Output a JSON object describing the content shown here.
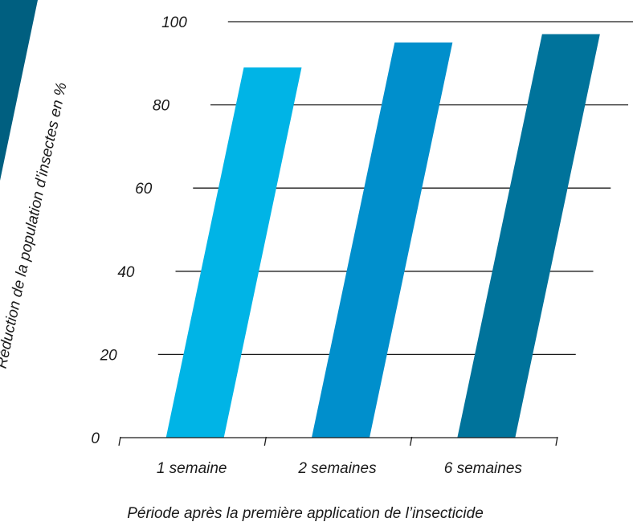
{
  "chart_data": {
    "type": "bar",
    "title": "",
    "xlabel": "Période après la première application de l’insecticide",
    "ylabel": "Réduction de la population d’insectes en %",
    "categories": [
      "1 semaine",
      "2 semaines",
      "6 semaines"
    ],
    "values": [
      89,
      95,
      97
    ],
    "ylim": [
      0,
      100
    ],
    "yticks": [
      "0",
      "20",
      "40",
      "60",
      "80",
      "100"
    ],
    "grid": true,
    "legend": "none",
    "colors": [
      "#00b4e6",
      "#008fcc",
      "#00739b"
    ],
    "decoration_color": "#005f80"
  }
}
